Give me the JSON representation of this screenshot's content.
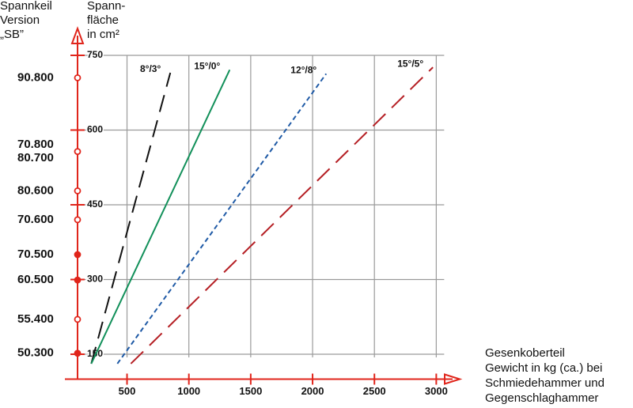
{
  "chart_data": {
    "type": "line",
    "y_title_lines": [
      "Spannkeil",
      "Version",
      "„SB”"
    ],
    "y2_title_lines": [
      "Spann-",
      "fläche",
      "in cm²"
    ],
    "x_title_lines": [
      "Gesenkoberteil",
      "Gewicht in kg (ca.) bei",
      "Schmiedehammer und",
      "Gegenschlaghammer"
    ],
    "xlim": [
      100,
      3100
    ],
    "ylim": [
      100,
      800
    ],
    "xticks": [
      500,
      1000,
      1500,
      2000,
      2500,
      3000
    ],
    "yticks": [
      150,
      300,
      450,
      600,
      750
    ],
    "grid": true,
    "series": [
      {
        "name": "8°/3°",
        "color": "#111111",
        "dash": "long",
        "x": [
          211,
          850
        ],
        "values": [
          131,
          715
        ]
      },
      {
        "name": "15°/0°",
        "color": "#12905a",
        "dash": "solid",
        "x": [
          211,
          1330
        ],
        "values": [
          131,
          721
        ]
      },
      {
        "name": "12°/8°",
        "color": "#1f5aa6",
        "dash": "short",
        "x": [
          422,
          2110
        ],
        "values": [
          131,
          713
        ]
      },
      {
        "name": "15°/5°",
        "color": "#b51f24",
        "dash": "long",
        "x": [
          531,
          2973
        ],
        "values": [
          131,
          726
        ]
      }
    ],
    "versions": [
      {
        "labels": [
          "90.800"
        ],
        "y": 705,
        "filled": false
      },
      {
        "labels": [
          "70.800",
          "80.700"
        ],
        "y": 557,
        "filled": false
      },
      {
        "labels": [
          "80.600"
        ],
        "y": 478,
        "filled": false
      },
      {
        "labels": [
          "70.600"
        ],
        "y": 420,
        "filled": false
      },
      {
        "labels": [
          "70.500"
        ],
        "y": 350,
        "filled": true
      },
      {
        "labels": [
          "60.500"
        ],
        "y": 299,
        "filled": true
      },
      {
        "labels": [
          "55.400"
        ],
        "y": 220,
        "filled": false
      },
      {
        "labels": [
          "50.300"
        ],
        "y": 152,
        "filled": true
      }
    ]
  }
}
